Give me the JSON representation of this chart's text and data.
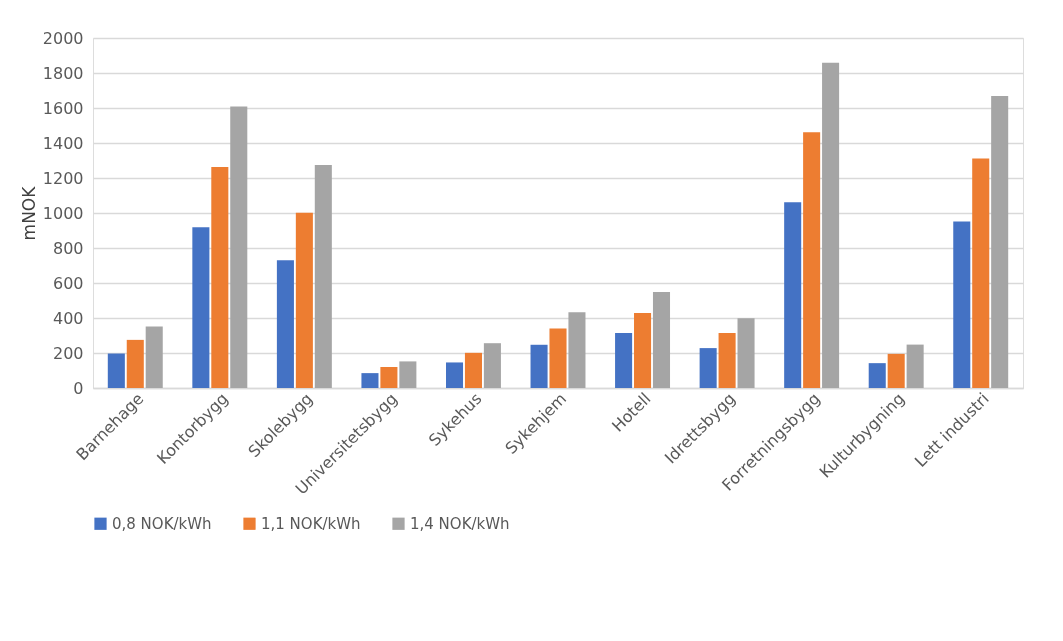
{
  "chart_data": {
    "type": "bar",
    "ylabel": "mNOK",
    "categories": [
      "Barnehage",
      "Kontorbygg",
      "Skolebygg",
      "Universitetsbygg",
      "Sykehus",
      "Sykehjem",
      "Hotell",
      "Idrettsbygg",
      "Forretningsbygg",
      "Kulturbygning",
      "Lett industri"
    ],
    "series": [
      {
        "name": "0,8 NOK/kWh",
        "color": "#4472c4",
        "values": [
          197,
          918,
          730,
          85,
          146,
          247,
          315,
          228,
          1062,
          142,
          952
        ]
      },
      {
        "name": "1,1 NOK/kWh",
        "color": "#ed7d31",
        "values": [
          275,
          1263,
          1002,
          120,
          201,
          340,
          429,
          315,
          1461,
          195,
          1311
        ]
      },
      {
        "name": "1,4 NOK/kWh",
        "color": "#a5a5a5",
        "values": [
          351,
          1609,
          1275,
          152,
          256,
          433,
          548,
          398,
          1859,
          248,
          1669
        ]
      }
    ],
    "ylim": [
      0,
      2000
    ],
    "yticks": [
      0,
      200,
      400,
      600,
      800,
      1000,
      1200,
      1400,
      1600,
      1800,
      2000
    ],
    "grid": "y",
    "legend": "bottom"
  }
}
